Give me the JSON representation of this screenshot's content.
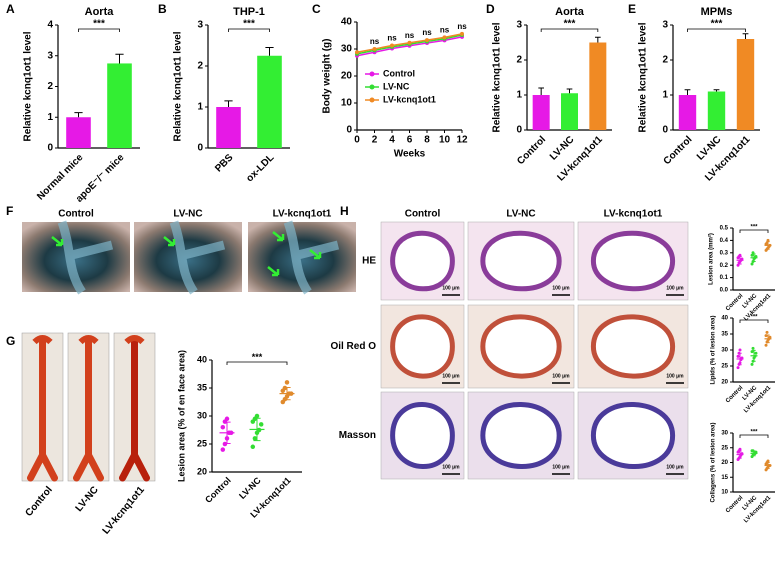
{
  "panel_letters": [
    "A",
    "B",
    "C",
    "D",
    "E",
    "F",
    "G",
    "H"
  ],
  "photos_f": {
    "labels": [
      "Control",
      "LV-NC",
      "LV-kcnq1ot1"
    ]
  },
  "photos_g": {
    "labels": [
      "Control",
      "LV-NC",
      "LV-kcnq1ot1"
    ]
  },
  "histology_h": {
    "columns": [
      "Control",
      "LV-NC",
      "LV-kcnq1ot1"
    ],
    "rows": [
      "HE",
      "Oil Red O",
      "Masson"
    ],
    "scale_bar": "100 μm"
  },
  "chart_data": [
    {
      "type": "bar",
      "title": "Aorta",
      "ylabel": "Relative kcnq1ot1 level",
      "categories": [
        "Normal mice",
        "apoE⁻/⁻ mice"
      ],
      "values": [
        1.0,
        2.75
      ],
      "errors": [
        0.15,
        0.3
      ],
      "colors": [
        "#e619e6",
        "#33ee33"
      ],
      "ylim": [
        0,
        4
      ],
      "yticks": [
        0,
        1,
        2,
        3,
        4
      ],
      "significance": "***"
    },
    {
      "type": "bar",
      "title": "THP-1",
      "ylabel": "Relative kcnq1ot1 level",
      "categories": [
        "PBS",
        "ox-LDL"
      ],
      "values": [
        1.0,
        2.25
      ],
      "errors": [
        0.15,
        0.2
      ],
      "colors": [
        "#e619e6",
        "#33ee33"
      ],
      "ylim": [
        0,
        3
      ],
      "yticks": [
        0,
        1,
        2,
        3
      ],
      "significance": "***"
    },
    {
      "type": "line",
      "ylabel": "Body weight (g)",
      "xlabel": "Weeks",
      "x": [
        0,
        2,
        4,
        6,
        8,
        10,
        12
      ],
      "xlim": [
        0,
        12
      ],
      "xticks": [
        0,
        2,
        4,
        6,
        8,
        10,
        12
      ],
      "ylim": [
        0,
        40
      ],
      "yticks": [
        0,
        10,
        20,
        30,
        40
      ],
      "annotation": "ns",
      "series": [
        {
          "name": "Control",
          "color": "#e619e6",
          "values": [
            27.5,
            28.8,
            30.2,
            31.2,
            32.2,
            33.2,
            34.5
          ]
        },
        {
          "name": "LV-NC",
          "color": "#33dd33",
          "values": [
            28.2,
            29.5,
            30.8,
            31.8,
            32.8,
            33.8,
            35.2
          ]
        },
        {
          "name": "LV-kcnq1ot1",
          "color": "#f08a24",
          "values": [
            28.8,
            30.0,
            31.3,
            32.3,
            33.3,
            34.3,
            35.6
          ]
        }
      ]
    },
    {
      "type": "bar",
      "title": "Aorta",
      "ylabel": "Relative kcnq1ot1 level",
      "categories": [
        "Control",
        "LV-NC",
        "LV-kcnq1ot1"
      ],
      "values": [
        1.0,
        1.05,
        2.5
      ],
      "errors": [
        0.2,
        0.12,
        0.15
      ],
      "colors": [
        "#e619e6",
        "#33ee33",
        "#f08a24"
      ],
      "ylim": [
        0,
        3
      ],
      "yticks": [
        0,
        1,
        2,
        3
      ],
      "significance": "***"
    },
    {
      "type": "bar",
      "title": "MPMs",
      "ylabel": "Relative kcnq1ot1 level",
      "categories": [
        "Control",
        "LV-NC",
        "LV-kcnq1ot1"
      ],
      "values": [
        1.0,
        1.1,
        2.6
      ],
      "errors": [
        0.15,
        0.05,
        0.15
      ],
      "colors": [
        "#e619e6",
        "#33ee33",
        "#f08a24"
      ],
      "ylim": [
        0,
        3
      ],
      "yticks": [
        0,
        1,
        2,
        3
      ],
      "significance": "***"
    },
    {
      "type": "strip",
      "ylabel": "Lesion area (% of en face area)",
      "categories": [
        "Control",
        "LV-NC",
        "LV-kcnq1ot1"
      ],
      "colors": [
        "#e619e6",
        "#33dd33",
        "#e08a2c"
      ],
      "points": [
        [
          24,
          25,
          26,
          27,
          27,
          28,
          29,
          29.5
        ],
        [
          24.5,
          26,
          27,
          27.5,
          28.5,
          29,
          29.5,
          30
        ],
        [
          32.5,
          33,
          33.5,
          34,
          34,
          34.5,
          35,
          36
        ]
      ],
      "means": [
        27,
        27.6,
        34
      ],
      "errors": [
        1.9,
        2.0,
        1.1
      ],
      "ylim": [
        20,
        40
      ],
      "yticks": [
        20,
        25,
        30,
        35,
        40
      ],
      "significance": "***"
    },
    {
      "type": "strip",
      "ylabel": "Lesion area (mm²)",
      "categories": [
        "Control",
        "LV-NC",
        "LV-kcnq1ot1"
      ],
      "colors": [
        "#e619e6",
        "#33dd33",
        "#e08a2c"
      ],
      "points": [
        [
          0.2,
          0.22,
          0.23,
          0.24,
          0.25,
          0.26,
          0.27,
          0.28
        ],
        [
          0.21,
          0.23,
          0.25,
          0.26,
          0.27,
          0.28,
          0.3
        ],
        [
          0.32,
          0.33,
          0.34,
          0.35,
          0.36,
          0.37,
          0.38,
          0.4
        ]
      ],
      "means": [
        0.24,
        0.26,
        0.36
      ],
      "errors": [
        0.03,
        0.03,
        0.03
      ],
      "ylim": [
        0,
        0.5
      ],
      "yticks": [
        {
          "value": 0,
          "label": "0.0"
        },
        0.1,
        0.2,
        0.3,
        0.4,
        0.5
      ],
      "significance": "***"
    },
    {
      "type": "strip",
      "ylabel": "Lipids (% of lesion area)",
      "categories": [
        "Control",
        "LV-NC",
        "LV-kcnq1ot1"
      ],
      "colors": [
        "#e619e6",
        "#33dd33",
        "#e08a2c"
      ],
      "points": [
        [
          24.5,
          25.5,
          26,
          27,
          27.5,
          28,
          29,
          30
        ],
        [
          25.5,
          26.5,
          27.5,
          28,
          29,
          29.5,
          30.5
        ],
        [
          31.5,
          32.5,
          33,
          33.5,
          34,
          34.5,
          35.5
        ]
      ],
      "means": [
        27.2,
        28.2,
        33.5
      ],
      "errors": [
        1.8,
        1.7,
        1.2
      ],
      "ylim": [
        20,
        40
      ],
      "yticks": [
        20,
        25,
        30,
        35,
        40
      ],
      "significance": "***"
    },
    {
      "type": "strip",
      "ylabel": "Collagens (% of lesion area)",
      "categories": [
        "Control",
        "LV-NC",
        "LV-kcnq1ot1"
      ],
      "colors": [
        "#e619e6",
        "#33dd33",
        "#e08a2c"
      ],
      "points": [
        [
          21,
          21.5,
          22,
          22.5,
          23,
          23.5,
          24,
          24.5
        ],
        [
          22,
          22.5,
          23,
          23,
          23.5,
          24,
          24
        ],
        [
          17.5,
          18,
          18.5,
          19,
          19,
          19.5,
          20,
          20.5
        ]
      ],
      "means": [
        22.7,
        23.1,
        19
      ],
      "errors": [
        1.2,
        0.8,
        1.0
      ],
      "ylim": [
        10,
        30
      ],
      "yticks": [
        10,
        15,
        20,
        25,
        30
      ],
      "significance": "***"
    }
  ]
}
